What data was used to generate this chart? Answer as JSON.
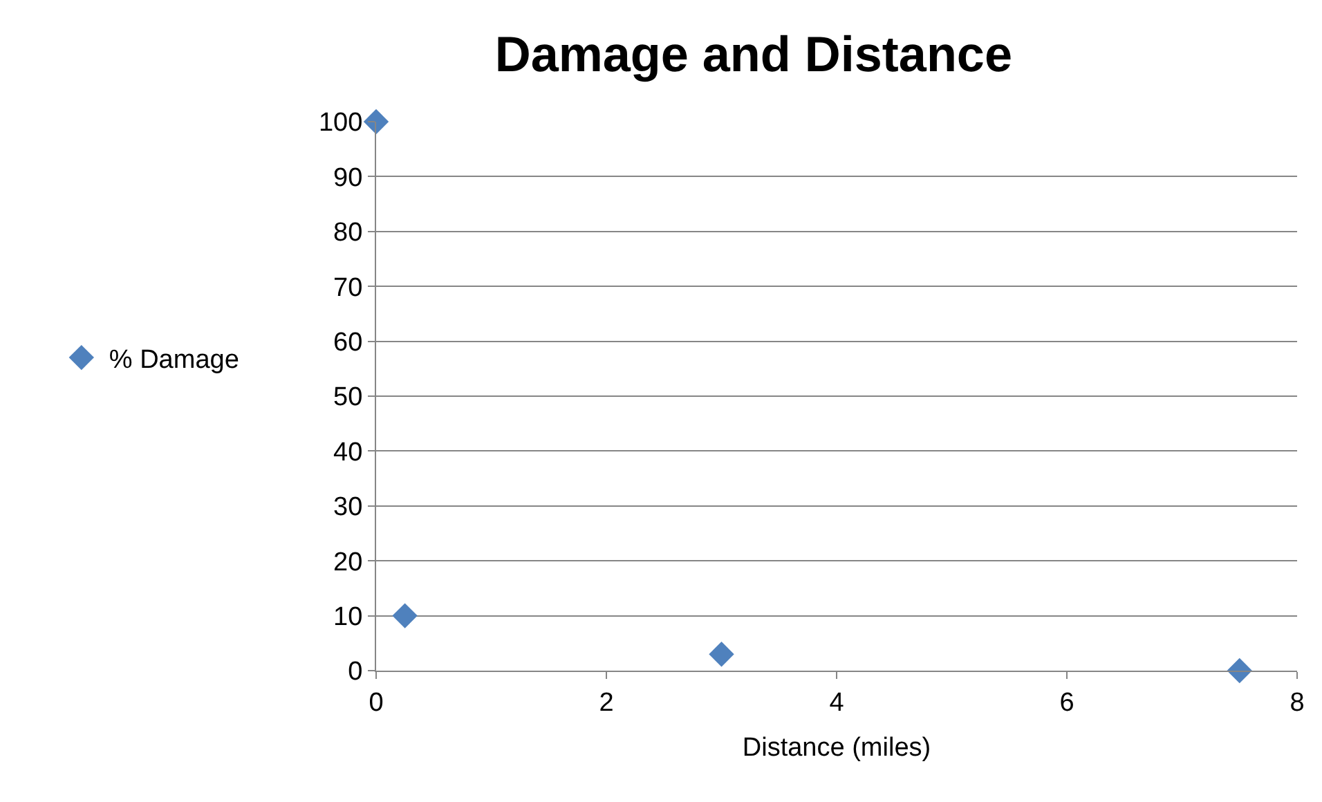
{
  "chart_data": {
    "type": "scatter",
    "title": "Damage and Distance",
    "xlabel": "Distance (miles)",
    "x": [
      0,
      0.25,
      3,
      7.5
    ],
    "series": [
      {
        "name": "% Damage",
        "color": "#4f81bd",
        "values": [
          100,
          10,
          3,
          0
        ]
      }
    ],
    "xlim": [
      0,
      8
    ],
    "xticks": [
      0,
      2,
      4,
      6,
      8
    ],
    "ylim": [
      0,
      100
    ],
    "yticks": [
      0,
      10,
      20,
      30,
      40,
      50,
      60,
      70,
      80,
      90,
      100
    ],
    "grid": "y",
    "legend": "left",
    "marker": "diamond"
  }
}
